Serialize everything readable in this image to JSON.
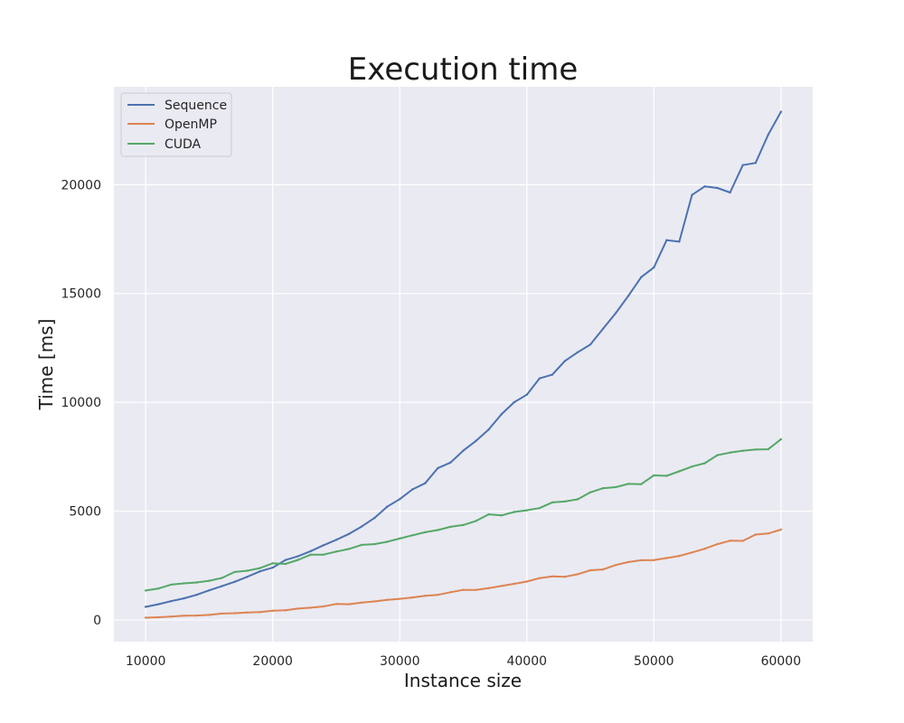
{
  "chart_data": {
    "type": "line",
    "title": "Execution time",
    "xlabel": "Instance size",
    "ylabel": "Time [ms]",
    "xlim": [
      7500,
      62500
    ],
    "ylim": [
      -1000,
      24500
    ],
    "xticks": [
      10000,
      20000,
      30000,
      40000,
      50000,
      60000
    ],
    "yticks": [
      0,
      5000,
      10000,
      15000,
      20000
    ],
    "grid": true,
    "legend_position": "top-left",
    "x": [
      10000,
      11000,
      12000,
      13000,
      14000,
      15000,
      16000,
      17000,
      18000,
      19000,
      20000,
      21000,
      22000,
      23000,
      24000,
      25000,
      26000,
      27000,
      28000,
      29000,
      30000,
      31000,
      32000,
      33000,
      34000,
      35000,
      36000,
      37000,
      38000,
      39000,
      40000,
      41000,
      42000,
      43000,
      44000,
      45000,
      46000,
      47000,
      48000,
      49000,
      50000,
      51000,
      52000,
      53000,
      54000,
      55000,
      56000,
      57000,
      58000,
      59000,
      60000
    ],
    "series": [
      {
        "name": "Sequence",
        "color": "#4c72b0",
        "values": [
          600,
          720,
          860,
          990,
          1150,
          1360,
          1550,
          1750,
          1980,
          2230,
          2400,
          2750,
          2930,
          3160,
          3430,
          3680,
          3950,
          4290,
          4680,
          5200,
          5550,
          6000,
          6280,
          6980,
          7230,
          7780,
          8230,
          8750,
          9450,
          10000,
          10350,
          11100,
          11270,
          11900,
          12300,
          12650,
          13380,
          14100,
          14900,
          15750,
          16200,
          17450,
          17380,
          19530,
          19920,
          19850,
          19640,
          20900,
          21000,
          22300,
          23350
        ]
      },
      {
        "name": "OpenMP",
        "color": "#dd8452",
        "values": [
          100,
          120,
          150,
          190,
          200,
          230,
          290,
          310,
          340,
          360,
          420,
          440,
          520,
          560,
          620,
          730,
          720,
          800,
          850,
          920,
          970,
          1030,
          1110,
          1150,
          1270,
          1380,
          1380,
          1460,
          1560,
          1660,
          1760,
          1920,
          2000,
          1980,
          2100,
          2280,
          2320,
          2520,
          2660,
          2740,
          2750,
          2840,
          2940,
          3100,
          3270,
          3480,
          3640,
          3630,
          3920,
          3970,
          4150
        ]
      },
      {
        "name": "CUDA",
        "color": "#55a868",
        "values": [
          1350,
          1440,
          1620,
          1680,
          1720,
          1800,
          1930,
          2200,
          2260,
          2380,
          2600,
          2570,
          2760,
          3000,
          3000,
          3140,
          3260,
          3450,
          3480,
          3590,
          3740,
          3890,
          4030,
          4130,
          4280,
          4360,
          4550,
          4850,
          4800,
          4960,
          5040,
          5140,
          5400,
          5440,
          5540,
          5860,
          6050,
          6100,
          6250,
          6240,
          6640,
          6620,
          6830,
          7050,
          7200,
          7570,
          7690,
          7770,
          7830,
          7840,
          8300
        ]
      }
    ]
  }
}
